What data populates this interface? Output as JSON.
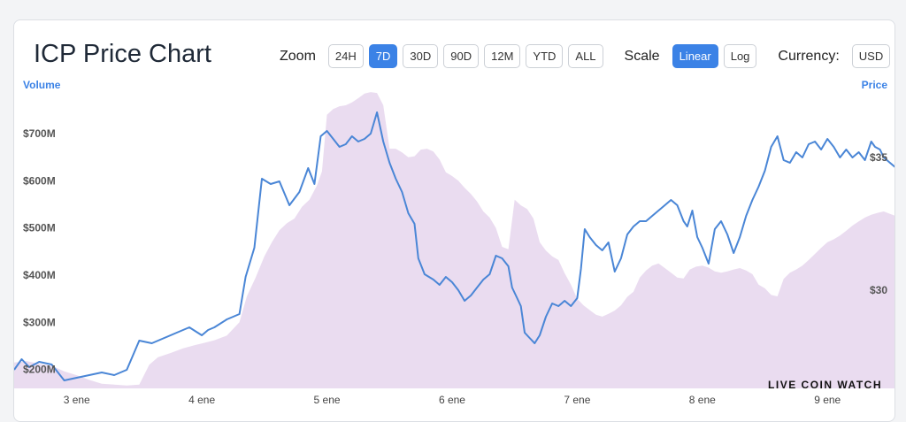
{
  "title": "ICP Price Chart",
  "controls": {
    "zoom_label": "Zoom",
    "zoom_options": [
      "24H",
      "7D",
      "30D",
      "90D",
      "12M",
      "YTD",
      "ALL"
    ],
    "zoom_selected": "7D",
    "scale_label": "Scale",
    "scale_options": [
      "Linear",
      "Log"
    ],
    "scale_selected": "Linear",
    "currency_label": "Currency:",
    "currency_value": "USD"
  },
  "watermark": "LIVE COIN WATCH",
  "colors": {
    "accent": "#3b82e6",
    "price_line": "#4a86d6",
    "volume_fill": "#eadcf0"
  },
  "chart_data": {
    "type": "line",
    "xlabel": "",
    "left_axis_label": "Volume",
    "right_axis_label": "Price",
    "x_ticks": [
      "3 ene",
      "4 ene",
      "5 ene",
      "6 ene",
      "7 ene",
      "8 ene",
      "9 ene"
    ],
    "x_range": [
      2.5,
      9.55
    ],
    "volume_ticks": [
      "$200M",
      "$300M",
      "$400M",
      "$500M",
      "$600M",
      "$700M"
    ],
    "volume_tick_values": [
      200,
      300,
      400,
      500,
      600,
      700
    ],
    "volume_range": [
      160,
      790
    ],
    "price_ticks": [
      "$30",
      "$35"
    ],
    "price_tick_values": [
      30,
      35
    ],
    "price_range": [
      26.3,
      37.5
    ],
    "grid": false,
    "series": [
      {
        "name": "Price",
        "unit": "USD",
        "points": [
          [
            2.5,
            27.0
          ],
          [
            2.56,
            27.4
          ],
          [
            2.62,
            27.1
          ],
          [
            2.7,
            27.3
          ],
          [
            2.8,
            27.2
          ],
          [
            2.9,
            26.6
          ],
          [
            3.0,
            26.7
          ],
          [
            3.1,
            26.8
          ],
          [
            3.2,
            26.9
          ],
          [
            3.3,
            26.8
          ],
          [
            3.4,
            27.0
          ],
          [
            3.5,
            28.1
          ],
          [
            3.6,
            28.0
          ],
          [
            3.7,
            28.2
          ],
          [
            3.8,
            28.4
          ],
          [
            3.9,
            28.6
          ],
          [
            4.0,
            28.3
          ],
          [
            4.05,
            28.5
          ],
          [
            4.1,
            28.6
          ],
          [
            4.2,
            28.9
          ],
          [
            4.3,
            29.1
          ],
          [
            4.35,
            30.5
          ],
          [
            4.42,
            31.6
          ],
          [
            4.48,
            34.2
          ],
          [
            4.55,
            34.0
          ],
          [
            4.62,
            34.1
          ],
          [
            4.7,
            33.2
          ],
          [
            4.78,
            33.7
          ],
          [
            4.85,
            34.6
          ],
          [
            4.9,
            34.0
          ],
          [
            4.95,
            35.8
          ],
          [
            5.0,
            36.0
          ],
          [
            5.05,
            35.7
          ],
          [
            5.1,
            35.4
          ],
          [
            5.15,
            35.5
          ],
          [
            5.2,
            35.8
          ],
          [
            5.25,
            35.6
          ],
          [
            5.3,
            35.7
          ],
          [
            5.35,
            35.9
          ],
          [
            5.4,
            36.7
          ],
          [
            5.45,
            35.6
          ],
          [
            5.5,
            34.8
          ],
          [
            5.55,
            34.2
          ],
          [
            5.6,
            33.7
          ],
          [
            5.65,
            32.9
          ],
          [
            5.7,
            32.5
          ],
          [
            5.73,
            31.2
          ],
          [
            5.78,
            30.6
          ],
          [
            5.85,
            30.4
          ],
          [
            5.9,
            30.2
          ],
          [
            5.95,
            30.5
          ],
          [
            6.0,
            30.3
          ],
          [
            6.05,
            30.0
          ],
          [
            6.1,
            29.6
          ],
          [
            6.15,
            29.8
          ],
          [
            6.2,
            30.1
          ],
          [
            6.25,
            30.4
          ],
          [
            6.3,
            30.6
          ],
          [
            6.35,
            31.3
          ],
          [
            6.4,
            31.2
          ],
          [
            6.45,
            30.9
          ],
          [
            6.48,
            30.1
          ],
          [
            6.52,
            29.7
          ],
          [
            6.55,
            29.4
          ],
          [
            6.58,
            28.4
          ],
          [
            6.62,
            28.2
          ],
          [
            6.66,
            28.0
          ],
          [
            6.7,
            28.3
          ],
          [
            6.75,
            29.0
          ],
          [
            6.8,
            29.5
          ],
          [
            6.85,
            29.4
          ],
          [
            6.9,
            29.6
          ],
          [
            6.95,
            29.4
          ],
          [
            7.0,
            29.7
          ],
          [
            7.03,
            30.8
          ],
          [
            7.06,
            32.3
          ],
          [
            7.1,
            32.0
          ],
          [
            7.15,
            31.7
          ],
          [
            7.2,
            31.5
          ],
          [
            7.25,
            31.8
          ],
          [
            7.3,
            30.7
          ],
          [
            7.35,
            31.2
          ],
          [
            7.4,
            32.1
          ],
          [
            7.45,
            32.4
          ],
          [
            7.5,
            32.6
          ],
          [
            7.55,
            32.6
          ],
          [
            7.6,
            32.8
          ],
          [
            7.65,
            33.0
          ],
          [
            7.7,
            33.2
          ],
          [
            7.75,
            33.4
          ],
          [
            7.8,
            33.2
          ],
          [
            7.85,
            32.6
          ],
          [
            7.88,
            32.4
          ],
          [
            7.92,
            33.0
          ],
          [
            7.96,
            32.0
          ],
          [
            8.0,
            31.6
          ],
          [
            8.05,
            31.0
          ],
          [
            8.1,
            32.3
          ],
          [
            8.15,
            32.6
          ],
          [
            8.2,
            32.1
          ],
          [
            8.25,
            31.4
          ],
          [
            8.3,
            32.0
          ],
          [
            8.35,
            32.8
          ],
          [
            8.4,
            33.4
          ],
          [
            8.45,
            33.9
          ],
          [
            8.5,
            34.5
          ],
          [
            8.55,
            35.4
          ],
          [
            8.6,
            35.8
          ],
          [
            8.65,
            34.9
          ],
          [
            8.7,
            34.8
          ],
          [
            8.75,
            35.2
          ],
          [
            8.8,
            35.0
          ],
          [
            8.85,
            35.5
          ],
          [
            8.9,
            35.6
          ],
          [
            8.95,
            35.3
          ],
          [
            9.0,
            35.7
          ],
          [
            9.05,
            35.4
          ],
          [
            9.1,
            35.0
          ],
          [
            9.15,
            35.3
          ],
          [
            9.2,
            35.0
          ],
          [
            9.25,
            35.2
          ],
          [
            9.3,
            34.9
          ],
          [
            9.35,
            35.6
          ],
          [
            9.38,
            35.4
          ],
          [
            9.42,
            35.3
          ],
          [
            9.45,
            35.0
          ],
          [
            9.5,
            34.8
          ],
          [
            9.55,
            34.6
          ]
        ]
      },
      {
        "name": "Volume",
        "unit": "USD",
        "points": [
          [
            2.5,
            215
          ],
          [
            2.6,
            218
          ],
          [
            2.7,
            212
          ],
          [
            2.8,
            208
          ],
          [
            2.9,
            196
          ],
          [
            3.0,
            188
          ],
          [
            3.1,
            178
          ],
          [
            3.2,
            170
          ],
          [
            3.3,
            168
          ],
          [
            3.4,
            166
          ],
          [
            3.5,
            168
          ],
          [
            3.58,
            210
          ],
          [
            3.65,
            226
          ],
          [
            3.75,
            235
          ],
          [
            3.85,
            245
          ],
          [
            3.95,
            252
          ],
          [
            4.0,
            255
          ],
          [
            4.1,
            262
          ],
          [
            4.2,
            272
          ],
          [
            4.3,
            300
          ],
          [
            4.36,
            355
          ],
          [
            4.43,
            395
          ],
          [
            4.5,
            440
          ],
          [
            4.56,
            470
          ],
          [
            4.62,
            495
          ],
          [
            4.68,
            510
          ],
          [
            4.74,
            520
          ],
          [
            4.8,
            545
          ],
          [
            4.86,
            560
          ],
          [
            4.92,
            590
          ],
          [
            4.96,
            620
          ],
          [
            5.0,
            740
          ],
          [
            5.05,
            752
          ],
          [
            5.1,
            758
          ],
          [
            5.15,
            760
          ],
          [
            5.2,
            766
          ],
          [
            5.25,
            775
          ],
          [
            5.3,
            785
          ],
          [
            5.35,
            788
          ],
          [
            5.4,
            786
          ],
          [
            5.45,
            760
          ],
          [
            5.5,
            668
          ],
          [
            5.55,
            668
          ],
          [
            5.6,
            660
          ],
          [
            5.65,
            650
          ],
          [
            5.7,
            652
          ],
          [
            5.75,
            666
          ],
          [
            5.8,
            668
          ],
          [
            5.85,
            662
          ],
          [
            5.9,
            645
          ],
          [
            5.95,
            618
          ],
          [
            6.0,
            610
          ],
          [
            6.05,
            600
          ],
          [
            6.1,
            585
          ],
          [
            6.15,
            572
          ],
          [
            6.2,
            556
          ],
          [
            6.25,
            535
          ],
          [
            6.3,
            522
          ],
          [
            6.35,
            500
          ],
          [
            6.4,
            460
          ],
          [
            6.45,
            455
          ],
          [
            6.5,
            560
          ],
          [
            6.55,
            548
          ],
          [
            6.6,
            540
          ],
          [
            6.65,
            520
          ],
          [
            6.7,
            470
          ],
          [
            6.75,
            452
          ],
          [
            6.8,
            440
          ],
          [
            6.85,
            432
          ],
          [
            6.9,
            404
          ],
          [
            6.95,
            380
          ],
          [
            7.0,
            350
          ],
          [
            7.05,
            336
          ],
          [
            7.1,
            326
          ],
          [
            7.15,
            316
          ],
          [
            7.2,
            312
          ],
          [
            7.25,
            318
          ],
          [
            7.3,
            325
          ],
          [
            7.35,
            336
          ],
          [
            7.4,
            354
          ],
          [
            7.45,
            365
          ],
          [
            7.5,
            395
          ],
          [
            7.55,
            410
          ],
          [
            7.6,
            420
          ],
          [
            7.65,
            425
          ],
          [
            7.7,
            415
          ],
          [
            7.75,
            405
          ],
          [
            7.8,
            395
          ],
          [
            7.85,
            393
          ],
          [
            7.9,
            412
          ],
          [
            7.95,
            418
          ],
          [
            8.0,
            420
          ],
          [
            8.05,
            416
          ],
          [
            8.1,
            408
          ],
          [
            8.15,
            405
          ],
          [
            8.2,
            408
          ],
          [
            8.25,
            412
          ],
          [
            8.3,
            415
          ],
          [
            8.35,
            410
          ],
          [
            8.4,
            402
          ],
          [
            8.45,
            380
          ],
          [
            8.5,
            372
          ],
          [
            8.55,
            358
          ],
          [
            8.6,
            355
          ],
          [
            8.65,
            392
          ],
          [
            8.7,
            405
          ],
          [
            8.75,
            412
          ],
          [
            8.8,
            420
          ],
          [
            8.85,
            432
          ],
          [
            8.9,
            445
          ],
          [
            8.95,
            458
          ],
          [
            9.0,
            470
          ],
          [
            9.05,
            476
          ],
          [
            9.1,
            484
          ],
          [
            9.15,
            494
          ],
          [
            9.2,
            505
          ],
          [
            9.25,
            514
          ],
          [
            9.3,
            522
          ],
          [
            9.35,
            528
          ],
          [
            9.4,
            532
          ],
          [
            9.45,
            535
          ],
          [
            9.5,
            530
          ],
          [
            9.55,
            525
          ]
        ]
      }
    ]
  }
}
